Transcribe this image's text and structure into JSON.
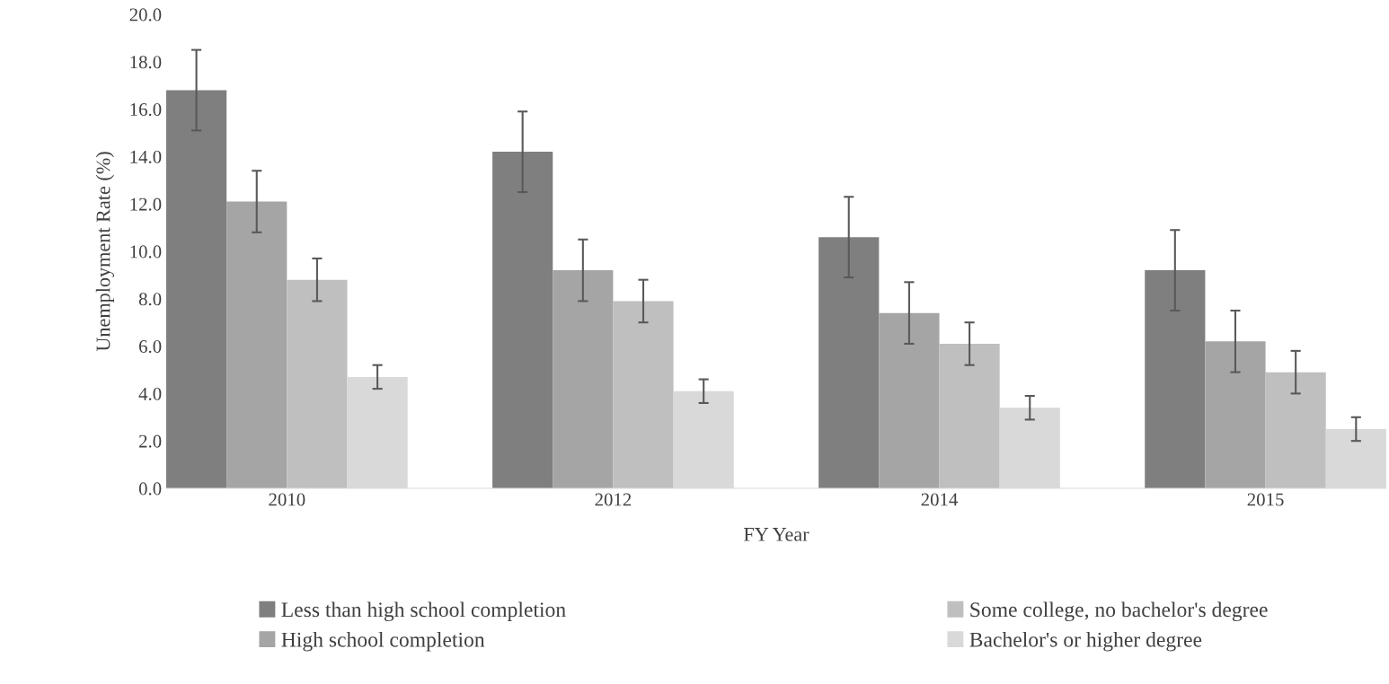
{
  "chart_data": {
    "type": "bar",
    "xlabel": "FY Year",
    "ylabel": "Unemployment Rate (%)",
    "categories": [
      "2010",
      "2012",
      "2014",
      "2015"
    ],
    "series": [
      {
        "name": "Less than high school completion",
        "color": "#7f7f7f",
        "values": [
          16.8,
          14.2,
          10.6,
          9.2
        ],
        "errors": [
          1.7,
          1.7,
          1.7,
          1.7
        ]
      },
      {
        "name": "High school completion",
        "color": "#a5a5a5",
        "values": [
          12.1,
          9.2,
          7.4,
          6.2
        ],
        "errors": [
          1.3,
          1.3,
          1.3,
          1.3
        ]
      },
      {
        "name": "Some college, no bachelor's degree",
        "color": "#bfbfbf",
        "values": [
          8.8,
          7.9,
          6.1,
          4.9
        ],
        "errors": [
          0.9,
          0.9,
          0.9,
          0.9
        ]
      },
      {
        "name": "Bachelor's or higher degree",
        "color": "#d9d9d9",
        "values": [
          4.7,
          4.1,
          3.4,
          2.5
        ],
        "errors": [
          0.5,
          0.5,
          0.5,
          0.5
        ]
      }
    ],
    "ylim": [
      0,
      20
    ],
    "yticks": [
      {
        "value": 0,
        "label": "0.0"
      },
      {
        "value": 2,
        "label": "2.0"
      },
      {
        "value": 4,
        "label": "4.0"
      },
      {
        "value": 6,
        "label": "6.0"
      },
      {
        "value": 8,
        "label": "8.0"
      },
      {
        "value": 10,
        "label": "10.0"
      },
      {
        "value": 12,
        "label": "12.0"
      },
      {
        "value": 14,
        "label": "14.0"
      },
      {
        "value": 16,
        "label": "16.0"
      },
      {
        "value": 18,
        "label": "18.0"
      },
      {
        "value": 20,
        "label": "20.0"
      }
    ],
    "grid": false,
    "legend": "bottom"
  }
}
